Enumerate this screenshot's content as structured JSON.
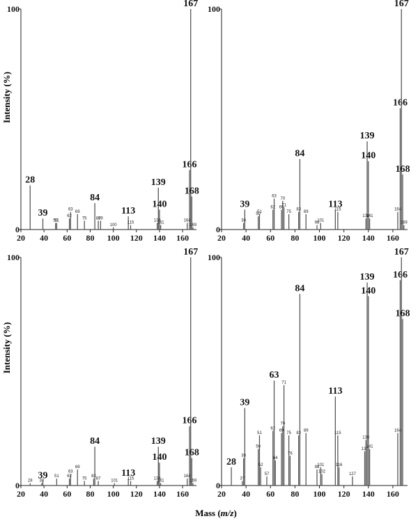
{
  "figure": {
    "ylabel": "Intensity (%)",
    "xlabel": "Mass (m/z)"
  },
  "chart_data": [
    {
      "type": "bar",
      "panel": "top-left",
      "xlim": [
        20,
        172
      ],
      "ylim": [
        0,
        100
      ],
      "xticks": [
        20,
        40,
        60,
        80,
        100,
        120,
        140,
        160
      ],
      "yticks": [
        0,
        100
      ],
      "peaks": [
        {
          "mz": 28,
          "intensity": 20,
          "label": "28",
          "big": true
        },
        {
          "mz": 39,
          "intensity": 5,
          "label": "39",
          "big": true
        },
        {
          "mz": 50,
          "intensity": 3,
          "label": "50",
          "big": false
        },
        {
          "mz": 51,
          "intensity": 3,
          "label": "51",
          "big": false
        },
        {
          "mz": 62,
          "intensity": 5,
          "label": "62",
          "big": false
        },
        {
          "mz": 63,
          "intensity": 8,
          "label": "63",
          "big": false
        },
        {
          "mz": 69,
          "intensity": 7,
          "label": "69",
          "big": false
        },
        {
          "mz": 75,
          "intensity": 4,
          "label": "75",
          "big": false
        },
        {
          "mz": 84,
          "intensity": 12,
          "label": "84",
          "big": true
        },
        {
          "mz": 87,
          "intensity": 4,
          "label": "87",
          "big": false
        },
        {
          "mz": 89,
          "intensity": 4,
          "label": "89",
          "big": false
        },
        {
          "mz": 100,
          "intensity": 1,
          "label": "100",
          "big": false
        },
        {
          "mz": 113,
          "intensity": 6,
          "label": "113",
          "big": true
        },
        {
          "mz": 115,
          "intensity": 2,
          "label": "115",
          "big": false
        },
        {
          "mz": 138,
          "intensity": 3,
          "label": "138",
          "big": false
        },
        {
          "mz": 139,
          "intensity": 19,
          "label": "139",
          "big": true
        },
        {
          "mz": 140,
          "intensity": 9,
          "label": "140",
          "big": true
        },
        {
          "mz": 141,
          "intensity": 2,
          "label": "141",
          "big": false
        },
        {
          "mz": 164,
          "intensity": 3,
          "label": "164",
          "big": false
        },
        {
          "mz": 166,
          "intensity": 27,
          "label": "166",
          "big": true
        },
        {
          "mz": 167,
          "intensity": 100,
          "label": "167",
          "big": true
        },
        {
          "mz": 168,
          "intensity": 15,
          "label": "168",
          "big": true
        },
        {
          "mz": 169,
          "intensity": 1,
          "label": "169",
          "big": false
        }
      ]
    },
    {
      "type": "bar",
      "panel": "top-right",
      "xlim": [
        20,
        172
      ],
      "ylim": [
        0,
        100
      ],
      "xticks": [
        20,
        40,
        60,
        80,
        100,
        120,
        140,
        160
      ],
      "yticks": [
        0,
        100
      ],
      "peaks": [
        {
          "mz": 38,
          "intensity": 3,
          "label": "38",
          "big": false
        },
        {
          "mz": 39,
          "intensity": 9,
          "label": "39",
          "big": true
        },
        {
          "mz": 50,
          "intensity": 6,
          "label": "50",
          "big": false
        },
        {
          "mz": 51,
          "intensity": 7,
          "label": "51",
          "big": false
        },
        {
          "mz": 62,
          "intensity": 9,
          "label": "62",
          "big": false
        },
        {
          "mz": 63,
          "intensity": 14,
          "label": "63",
          "big": false
        },
        {
          "mz": 69,
          "intensity": 9,
          "label": "69",
          "big": false
        },
        {
          "mz": 70,
          "intensity": 13,
          "label": "70",
          "big": false
        },
        {
          "mz": 71,
          "intensity": 10,
          "label": "71",
          "big": false
        },
        {
          "mz": 75,
          "intensity": 7,
          "label": "75",
          "big": false
        },
        {
          "mz": 83,
          "intensity": 8,
          "label": "83",
          "big": false
        },
        {
          "mz": 84,
          "intensity": 32,
          "label": "84",
          "big": true
        },
        {
          "mz": 89,
          "intensity": 7,
          "label": "89",
          "big": false
        },
        {
          "mz": 98,
          "intensity": 2,
          "label": "98",
          "big": false
        },
        {
          "mz": 101,
          "intensity": 3,
          "label": "101",
          "big": false
        },
        {
          "mz": 113,
          "intensity": 9,
          "label": "113",
          "big": true
        },
        {
          "mz": 115,
          "intensity": 8,
          "label": "115",
          "big": false
        },
        {
          "mz": 138,
          "intensity": 5,
          "label": "138",
          "big": false
        },
        {
          "mz": 139,
          "intensity": 40,
          "label": "139",
          "big": true
        },
        {
          "mz": 140,
          "intensity": 31,
          "label": "140",
          "big": true
        },
        {
          "mz": 141,
          "intensity": 5,
          "label": "141",
          "big": false
        },
        {
          "mz": 164,
          "intensity": 8,
          "label": "164",
          "big": false
        },
        {
          "mz": 166,
          "intensity": 55,
          "label": "166",
          "big": true
        },
        {
          "mz": 167,
          "intensity": 100,
          "label": "167",
          "big": true
        },
        {
          "mz": 168,
          "intensity": 25,
          "label": "168",
          "big": true
        },
        {
          "mz": 169,
          "intensity": 2,
          "label": "169",
          "big": false
        }
      ]
    },
    {
      "type": "bar",
      "panel": "bottom-left",
      "xlim": [
        20,
        172
      ],
      "ylim": [
        0,
        100
      ],
      "xticks": [
        20,
        40,
        60,
        80,
        100,
        120,
        140,
        160
      ],
      "yticks": [
        0,
        100
      ],
      "peaks": [
        {
          "mz": 28,
          "intensity": 1,
          "label": "28",
          "big": false
        },
        {
          "mz": 38,
          "intensity": 1,
          "label": "38",
          "big": false
        },
        {
          "mz": 39,
          "intensity": 2,
          "label": "39",
          "big": true
        },
        {
          "mz": 51,
          "intensity": 3,
          "label": "51",
          "big": false
        },
        {
          "mz": 62,
          "intensity": 3,
          "label": "62",
          "big": false
        },
        {
          "mz": 63,
          "intensity": 5,
          "label": "63",
          "big": false
        },
        {
          "mz": 69,
          "intensity": 7,
          "label": "69",
          "big": false
        },
        {
          "mz": 75,
          "intensity": 2,
          "label": "75",
          "big": false
        },
        {
          "mz": 83,
          "intensity": 3,
          "label": "83",
          "big": false
        },
        {
          "mz": 84,
          "intensity": 17,
          "label": "84",
          "big": true
        },
        {
          "mz": 87,
          "intensity": 2,
          "label": "87",
          "big": false
        },
        {
          "mz": 101,
          "intensity": 1,
          "label": "101",
          "big": false
        },
        {
          "mz": 113,
          "intensity": 3,
          "label": "113",
          "big": true
        },
        {
          "mz": 115,
          "intensity": 2,
          "label": "115",
          "big": false
        },
        {
          "mz": 138,
          "intensity": 2,
          "label": "138",
          "big": false
        },
        {
          "mz": 139,
          "intensity": 17,
          "label": "139",
          "big": true
        },
        {
          "mz": 140,
          "intensity": 10,
          "label": "140",
          "big": true
        },
        {
          "mz": 141,
          "intensity": 1,
          "label": "141",
          "big": false
        },
        {
          "mz": 164,
          "intensity": 3,
          "label": "164",
          "big": false
        },
        {
          "mz": 166,
          "intensity": 26,
          "label": "166",
          "big": true
        },
        {
          "mz": 167,
          "intensity": 100,
          "label": "167",
          "big": true
        },
        {
          "mz": 168,
          "intensity": 12,
          "label": "168",
          "big": true
        },
        {
          "mz": 169,
          "intensity": 1,
          "label": "169",
          "big": false
        }
      ]
    },
    {
      "type": "bar",
      "panel": "bottom-right",
      "xlim": [
        20,
        172
      ],
      "ylim": [
        0,
        100
      ],
      "xticks": [
        20,
        40,
        60,
        80,
        100,
        120,
        140,
        160
      ],
      "yticks": [
        0,
        100
      ],
      "peaks": [
        {
          "mz": 28,
          "intensity": 8,
          "label": "28",
          "big": true
        },
        {
          "mz": 37,
          "intensity": 2,
          "label": "37",
          "big": false
        },
        {
          "mz": 38,
          "intensity": 12,
          "label": "38",
          "big": false
        },
        {
          "mz": 39,
          "intensity": 34,
          "label": "39",
          "big": true
        },
        {
          "mz": 50,
          "intensity": 16,
          "label": "50",
          "big": false
        },
        {
          "mz": 51,
          "intensity": 22,
          "label": "51",
          "big": false
        },
        {
          "mz": 52,
          "intensity": 8,
          "label": "52",
          "big": false
        },
        {
          "mz": 57,
          "intensity": 4,
          "label": "57",
          "big": false
        },
        {
          "mz": 62,
          "intensity": 24,
          "label": "62",
          "big": false
        },
        {
          "mz": 63,
          "intensity": 46,
          "label": "63",
          "big": true
        },
        {
          "mz": 64,
          "intensity": 11,
          "label": "64",
          "big": false
        },
        {
          "mz": 69,
          "intensity": 23,
          "label": "69",
          "big": false
        },
        {
          "mz": 70,
          "intensity": 26,
          "label": "70",
          "big": false
        },
        {
          "mz": 71,
          "intensity": 44,
          "label": "71",
          "big": false
        },
        {
          "mz": 75,
          "intensity": 22,
          "label": "75",
          "big": false
        },
        {
          "mz": 76,
          "intensity": 13,
          "label": "76",
          "big": false
        },
        {
          "mz": 83,
          "intensity": 22,
          "label": "83",
          "big": false
        },
        {
          "mz": 84,
          "intensity": 84,
          "label": "84",
          "big": true
        },
        {
          "mz": 89,
          "intensity": 23,
          "label": "89",
          "big": false
        },
        {
          "mz": 98,
          "intensity": 7,
          "label": "98",
          "big": false
        },
        {
          "mz": 101,
          "intensity": 8,
          "label": "101",
          "big": false
        },
        {
          "mz": 102,
          "intensity": 5,
          "label": "102",
          "big": false
        },
        {
          "mz": 113,
          "intensity": 39,
          "label": "113",
          "big": true
        },
        {
          "mz": 115,
          "intensity": 22,
          "label": "115",
          "big": false
        },
        {
          "mz": 116,
          "intensity": 8,
          "label": "116",
          "big": false
        },
        {
          "mz": 127,
          "intensity": 4,
          "label": "127",
          "big": false
        },
        {
          "mz": 137,
          "intensity": 15,
          "label": "137",
          "big": false
        },
        {
          "mz": 138,
          "intensity": 20,
          "label": "138",
          "big": false
        },
        {
          "mz": 139,
          "intensity": 89,
          "label": "139",
          "big": true
        },
        {
          "mz": 140,
          "intensity": 83,
          "label": "140",
          "big": true
        },
        {
          "mz": 141,
          "intensity": 16,
          "label": "141",
          "big": false
        },
        {
          "mz": 164,
          "intensity": 23,
          "label": "164",
          "big": false
        },
        {
          "mz": 166,
          "intensity": 90,
          "label": "166",
          "big": true
        },
        {
          "mz": 167,
          "intensity": 100,
          "label": "167",
          "big": true
        },
        {
          "mz": 168,
          "intensity": 73,
          "label": "168",
          "big": true
        }
      ]
    }
  ]
}
